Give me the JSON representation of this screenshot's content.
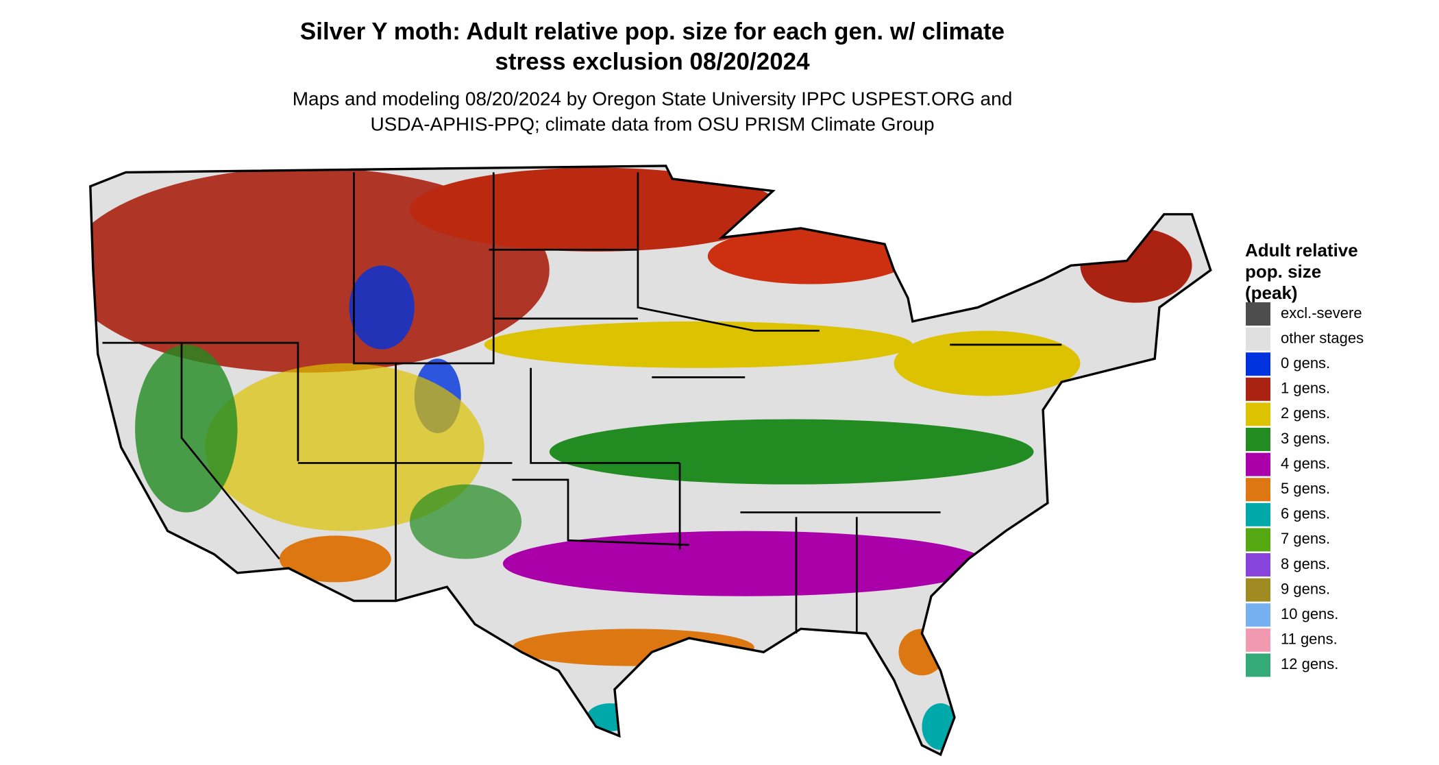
{
  "header": {
    "title_lines": [
      "Silver Y moth: Adult relative pop. size for each gen. w/ climate",
      "stress exclusion 08/20/2024"
    ],
    "subtitle_lines": [
      "Maps and modeling 08/20/2024 by Oregon State University IPPC USPEST.ORG and",
      "USDA-APHIS-PPQ; climate data from OSU PRISM Climate Group"
    ]
  },
  "legend": {
    "title_lines": [
      "Adult relative",
      "pop. size",
      "(peak)"
    ],
    "items": [
      {
        "label": "excl.-severe",
        "color": "#4d4d4d"
      },
      {
        "label": "other stages",
        "color": "#e0e0e0"
      },
      {
        "label": "0 gens.",
        "color": "#0033dd"
      },
      {
        "label": "1 gens.",
        "color": "#aa2212"
      },
      {
        "label": "2 gens.",
        "color": "#dcc200"
      },
      {
        "label": "3 gens.",
        "color": "#228b22"
      },
      {
        "label": "4 gens.",
        "color": "#aa00aa"
      },
      {
        "label": "5 gens.",
        "color": "#dd7711"
      },
      {
        "label": "6 gens.",
        "color": "#00a9a9"
      },
      {
        "label": "7 gens.",
        "color": "#55a811"
      },
      {
        "label": "8 gens.",
        "color": "#8844dd"
      },
      {
        "label": "9 gens.",
        "color": "#a08a22"
      },
      {
        "label": "10 gens.",
        "color": "#77b0f0"
      },
      {
        "label": "11 gens.",
        "color": "#f099b0"
      },
      {
        "label": "12 gens.",
        "color": "#33aa77"
      }
    ]
  }
}
